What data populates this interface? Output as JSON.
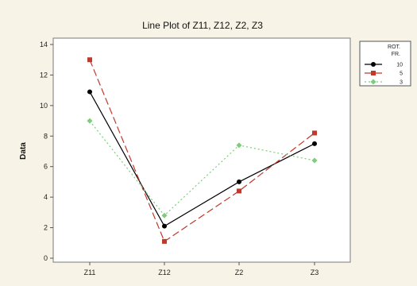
{
  "chart_data": {
    "type": "line",
    "title": "Line Plot of Z11, Z12, Z2, Z3",
    "xlabel": "",
    "ylabel": "Data",
    "categories": [
      "Z11",
      "Z12",
      "Z2",
      "Z3"
    ],
    "ylim": [
      0,
      14
    ],
    "yticks": [
      0,
      2,
      4,
      6,
      8,
      10,
      12,
      14
    ],
    "grid": false,
    "legend": {
      "title_line1": "ROT.",
      "title_line2": "FR.",
      "placement": "right"
    },
    "series": [
      {
        "name": "10",
        "values": [
          10.9,
          2.1,
          5.0,
          7.5
        ],
        "color": "#000000",
        "marker": "circle",
        "dash": "solid"
      },
      {
        "name": "5",
        "values": [
          13.0,
          1.1,
          4.4,
          8.2
        ],
        "color": "#c0392b",
        "marker": "square",
        "dash": "long-dash"
      },
      {
        "name": "3",
        "values": [
          9.0,
          2.8,
          7.4,
          6.4
        ],
        "color": "#7ccd7c",
        "marker": "diamond",
        "dash": "dot"
      }
    ]
  }
}
